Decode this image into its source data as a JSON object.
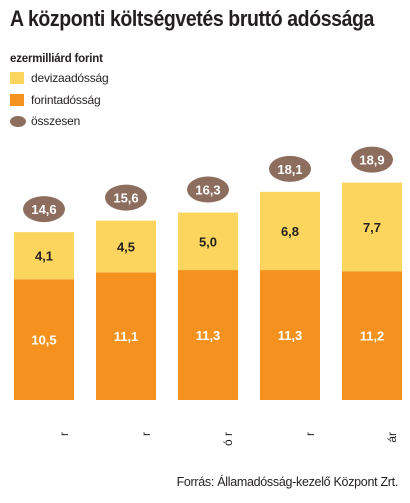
{
  "title": "A központi költségvetés bruttó adóssága",
  "source": "Forrás: Államadósság-kezelő Központ Zrt.",
  "chart_data": {
    "type": "bar",
    "stacked": true,
    "unit_label": "ezermilliárd forint",
    "categories": [
      "r",
      "r",
      "ó r",
      "r",
      "ár"
    ],
    "series": [
      {
        "name": "forintadósság",
        "values": [
          10.5,
          11.1,
          11.3,
          11.3,
          11.2
        ],
        "color": "#f5921f"
      },
      {
        "name": "devizaadósság",
        "values": [
          4.1,
          4.5,
          5.0,
          6.8,
          7.7
        ],
        "color": "#fbd55e"
      }
    ],
    "totals": {
      "name": "összesen",
      "values": [
        14.6,
        15.6,
        16.3,
        18.1,
        18.9
      ],
      "color": "#8c6d5e"
    },
    "value_labels": {
      "forintadósság": [
        "10,5",
        "11,1",
        "11,3",
        "11,3",
        "11,2"
      ],
      "devizaadósság": [
        "4,1",
        "4,5",
        "5,0",
        "6,8",
        "7,7"
      ],
      "összesen": [
        "14,6",
        "15,6",
        "16,3",
        "18,1",
        "18,9"
      ]
    },
    "legend_position": "top-left",
    "grid": false
  }
}
